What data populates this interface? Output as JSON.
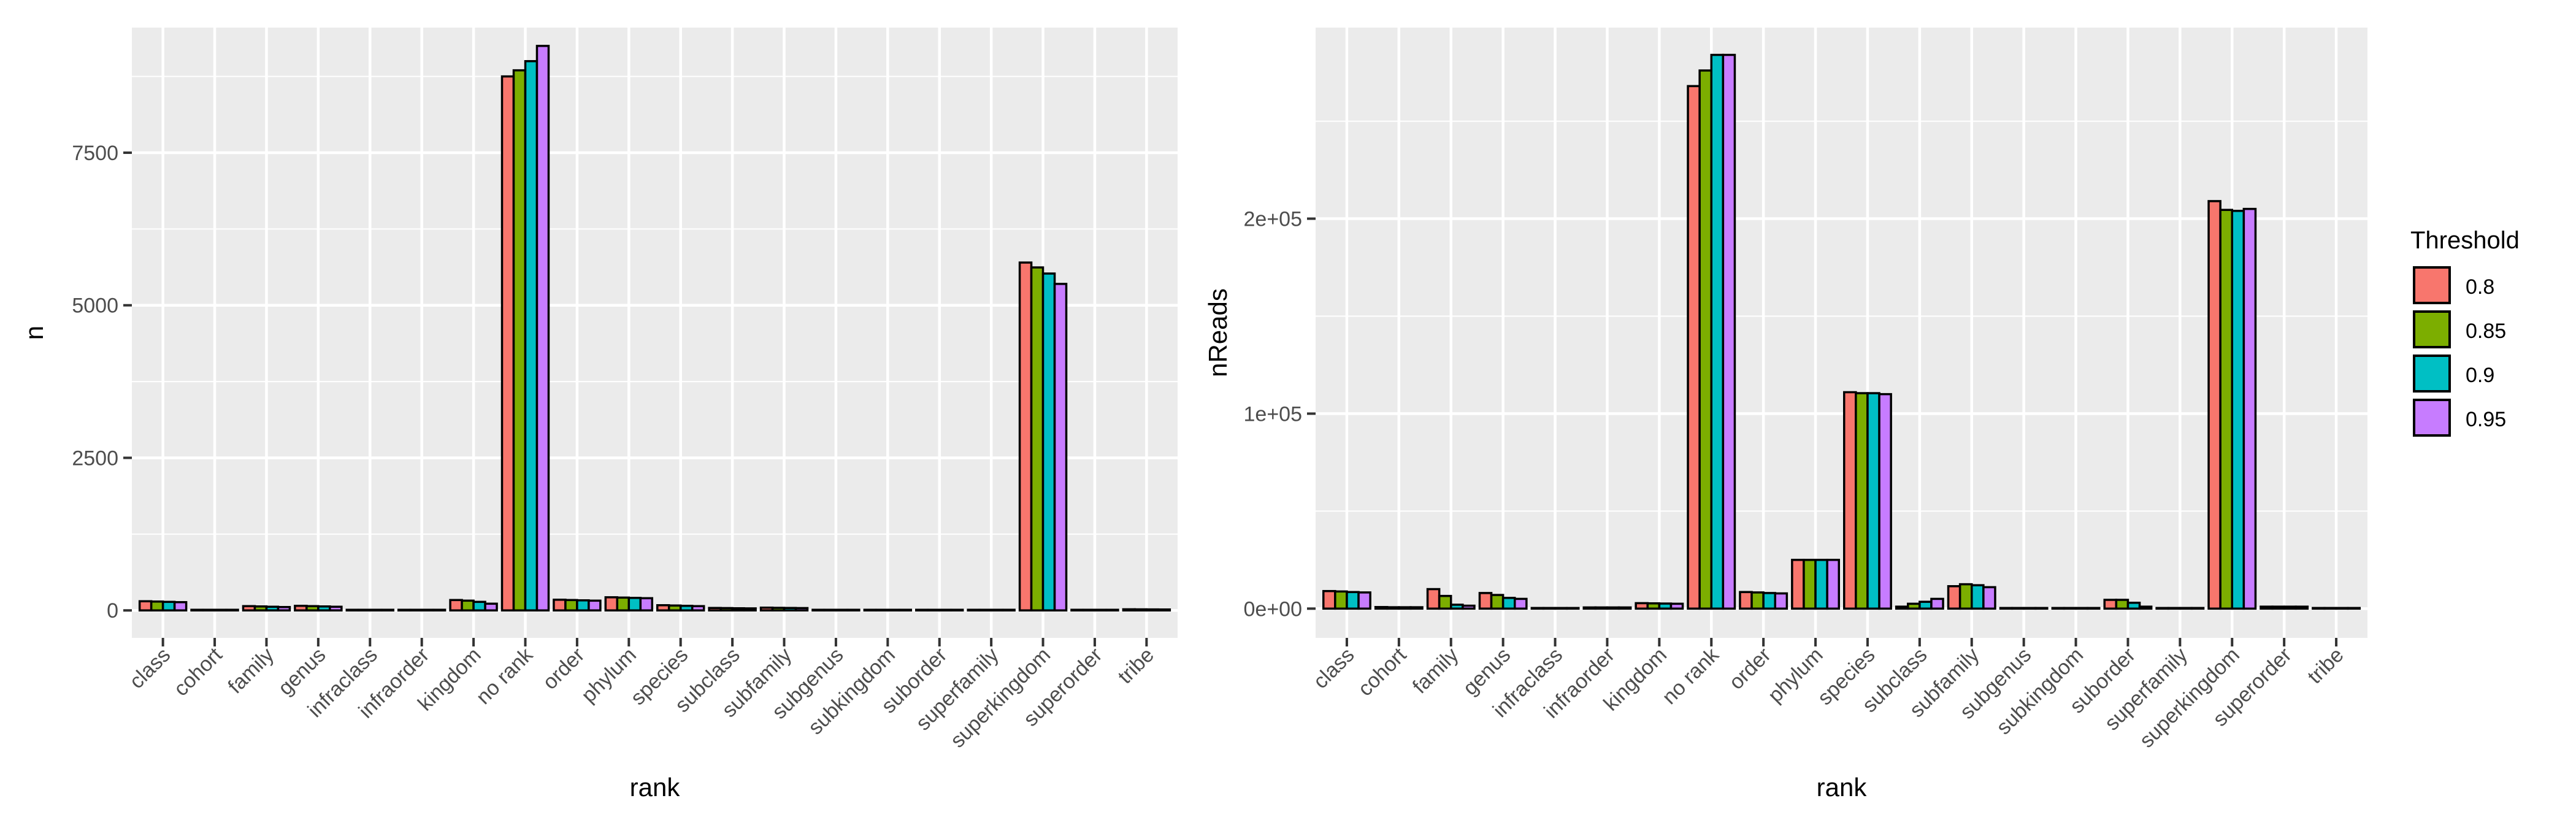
{
  "chart_data": [
    {
      "type": "bar",
      "xlabel": "rank",
      "ylabel": "n",
      "ylim": [
        -450,
        9550
      ],
      "yticks": [
        0,
        2500,
        5000,
        7500
      ],
      "ytick_labels": [
        "0",
        "2500",
        "5000",
        "7500"
      ],
      "categories": [
        "class",
        "cohort",
        "family",
        "genus",
        "infraclass",
        "infraorder",
        "kingdom",
        "no rank",
        "order",
        "phylum",
        "species",
        "subclass",
        "subfamily",
        "subgenus",
        "subkingdom",
        "suborder",
        "superfamily",
        "superkingdom",
        "superorder",
        "tribe"
      ],
      "series": [
        {
          "name": "0.8",
          "values": [
            150,
            8,
            70,
            75,
            3,
            3,
            170,
            8750,
            175,
            215,
            85,
            40,
            45,
            5,
            8,
            10,
            5,
            5700,
            4,
            18
          ]
        },
        {
          "name": "0.85",
          "values": [
            145,
            7,
            65,
            70,
            3,
            3,
            160,
            8850,
            170,
            210,
            80,
            38,
            42,
            5,
            8,
            10,
            5,
            5620,
            4,
            17
          ]
        },
        {
          "name": "0.9",
          "values": [
            140,
            6,
            60,
            65,
            3,
            3,
            140,
            9000,
            165,
            205,
            75,
            35,
            40,
            4,
            7,
            9,
            4,
            5520,
            3,
            16
          ]
        },
        {
          "name": "0.95",
          "values": [
            135,
            5,
            55,
            60,
            2,
            2,
            110,
            9250,
            160,
            200,
            70,
            33,
            38,
            4,
            7,
            9,
            4,
            5350,
            3,
            15
          ]
        }
      ]
    },
    {
      "type": "bar",
      "xlabel": "rank",
      "ylabel": "nReads",
      "ylim": [
        -15000,
        298000
      ],
      "yticks": [
        0,
        100000,
        200000
      ],
      "ytick_labels": [
        "0e+00",
        "1e+05",
        "2e+05"
      ],
      "categories": [
        "class",
        "cohort",
        "family",
        "genus",
        "infraclass",
        "infraorder",
        "kingdom",
        "no rank",
        "order",
        "phylum",
        "species",
        "subclass",
        "subfamily",
        "subgenus",
        "subkingdom",
        "suborder",
        "superfamily",
        "superkingdom",
        "superorder",
        "tribe"
      ],
      "series": [
        {
          "name": "0.8",
          "values": [
            9000,
            800,
            10000,
            8000,
            100,
            600,
            2800,
            268000,
            8500,
            25000,
            111000,
            1000,
            11500,
            200,
            200,
            4500,
            200,
            209000,
            1000,
            200
          ]
        },
        {
          "name": "0.85",
          "values": [
            8800,
            700,
            6500,
            7000,
            100,
            600,
            2700,
            276000,
            8300,
            25000,
            110500,
            2500,
            12500,
            200,
            200,
            4500,
            200,
            204500,
            1000,
            200
          ]
        },
        {
          "name": "0.9",
          "values": [
            8500,
            700,
            2000,
            5500,
            100,
            600,
            2600,
            284000,
            8000,
            25000,
            110500,
            3500,
            12000,
            200,
            200,
            3000,
            200,
            204000,
            1000,
            200
          ]
        },
        {
          "name": "0.95",
          "values": [
            8300,
            700,
            1500,
            5000,
            100,
            600,
            2500,
            284000,
            7800,
            25000,
            110000,
            5000,
            11000,
            200,
            200,
            1000,
            200,
            205000,
            1000,
            200
          ]
        }
      ]
    }
  ],
  "legend": {
    "title": "Threshold",
    "items": [
      {
        "label": "0.8",
        "color": "#F8766D"
      },
      {
        "label": "0.85",
        "color": "#7CAE00"
      },
      {
        "label": "0.9",
        "color": "#00BFC4"
      },
      {
        "label": "0.95",
        "color": "#C77CFF"
      }
    ]
  }
}
